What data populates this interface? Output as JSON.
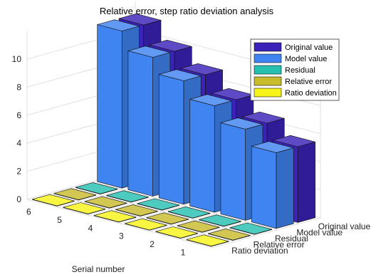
{
  "chart_data": {
    "type": "bar3d",
    "title": "Relative error, step ratio deviation analysis",
    "xlabel": "Serial number",
    "ylabel": "",
    "zlabel": "",
    "serial_numbers": [
      "6",
      "5",
      "4",
      "3",
      "2",
      "1"
    ],
    "z_ticks": [
      "0",
      "2",
      "4",
      "6",
      "8",
      "10"
    ],
    "zlim": [
      0,
      12
    ],
    "grid": true,
    "legend_position": "top-right",
    "series": [
      {
        "name": "Original value",
        "color": "#3b22b8",
        "values": [
          11.2,
          9.9,
          8.8,
          7.6,
          6.5,
          5.4
        ]
      },
      {
        "name": "Model value",
        "color": "#3f84f0",
        "values": [
          11.2,
          9.9,
          8.8,
          7.6,
          6.5,
          5.4
        ]
      },
      {
        "name": "Residual",
        "color": "#26c0b0",
        "values": [
          0.02,
          0.02,
          0.02,
          0.02,
          0.02,
          0.02
        ]
      },
      {
        "name": "Relative error",
        "color": "#c8bb2c",
        "values": [
          0.02,
          0.02,
          0.02,
          0.02,
          0.02,
          0.02
        ]
      },
      {
        "name": "Ratio deviation",
        "color": "#f6f41a",
        "values": [
          0.02,
          0.02,
          0.02,
          0.02,
          0.02,
          0.02
        ]
      }
    ]
  }
}
